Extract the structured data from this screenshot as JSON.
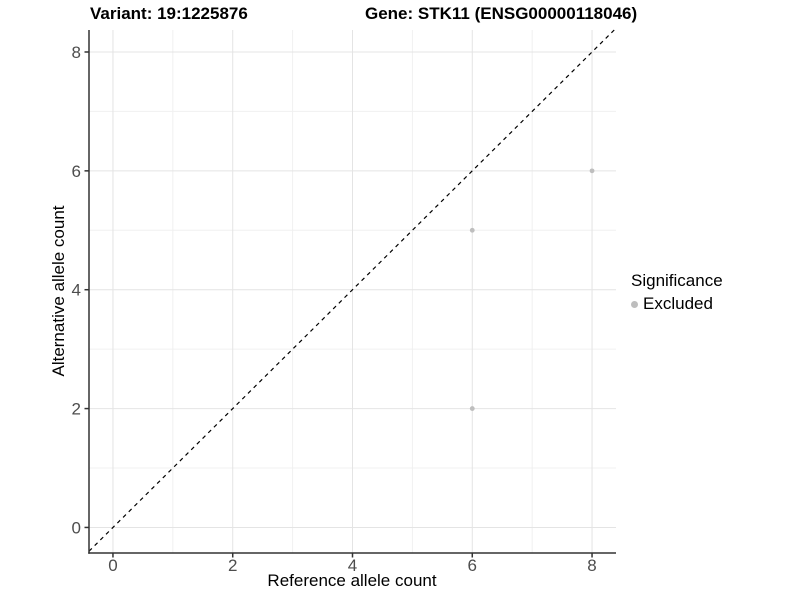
{
  "titles": {
    "variant": "Variant: 19:1225876",
    "gene": "Gene: STK11 (ENSG00000118046)"
  },
  "legend": {
    "title": "Significance",
    "items": [
      {
        "label": "Excluded",
        "color": "#bebebe"
      }
    ]
  },
  "colors": {
    "point": "#bebebe",
    "major_grid": "#e4e4e4",
    "minor_grid": "#f0f0f0",
    "axis_line": "#333333",
    "tick_text": "#4d4d4d",
    "reference_line": "#000000"
  },
  "chart_data": {
    "type": "scatter",
    "title": "Variant: 19:1225876   Gene: STK11 (ENSG00000118046)",
    "xlabel": "Reference allele count",
    "ylabel": "Alternative allele count",
    "xlim": [
      -0.4,
      8.4
    ],
    "ylim": [
      -0.43,
      8.37
    ],
    "xticks": [
      0,
      2,
      4,
      6,
      8
    ],
    "yticks": [
      0,
      2,
      4,
      6,
      8
    ],
    "minor_xticks": [
      1,
      3,
      5,
      7
    ],
    "minor_yticks": [
      1,
      3,
      5,
      7
    ],
    "grid": true,
    "legend_position": "right",
    "series": [
      {
        "name": "Excluded",
        "color": "#bebebe",
        "points": [
          [
            6,
            2
          ],
          [
            6,
            5
          ],
          [
            8,
            6
          ]
        ]
      }
    ],
    "reference_line": {
      "kind": "identity",
      "intercept": 0,
      "slope": 1,
      "style": "dashed",
      "color": "#000000"
    }
  }
}
